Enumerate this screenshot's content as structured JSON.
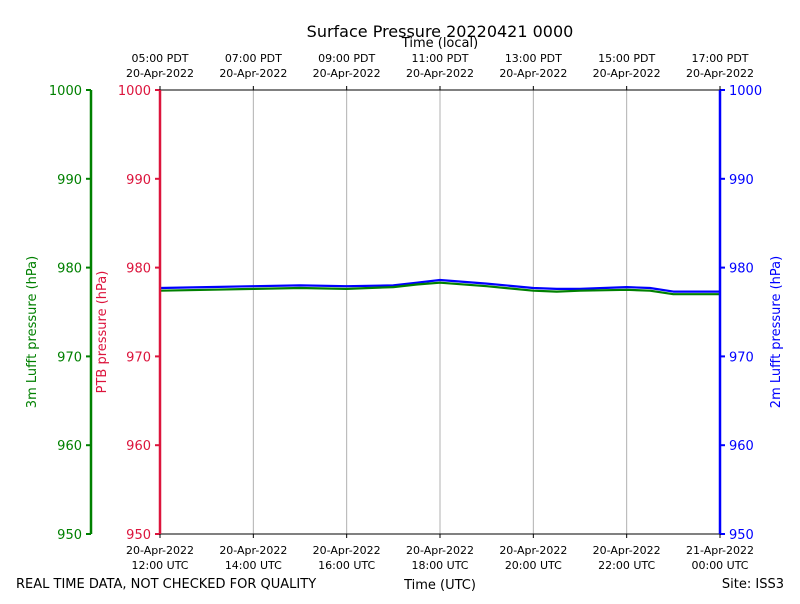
{
  "chart_data": {
    "type": "line",
    "title": "Surface Pressure 20220421 0000",
    "top_axis_label": "Time (local)",
    "xlabel": "Time (UTC)",
    "x_range_utc": [
      "2022-04-20 12:00",
      "2022-04-21 00:00"
    ],
    "x_ticks_utc": [
      {
        "line1": "20-Apr-2022",
        "line2": "12:00 UTC"
      },
      {
        "line1": "20-Apr-2022",
        "line2": "14:00 UTC"
      },
      {
        "line1": "20-Apr-2022",
        "line2": "16:00 UTC"
      },
      {
        "line1": "20-Apr-2022",
        "line2": "18:00 UTC"
      },
      {
        "line1": "20-Apr-2022",
        "line2": "20:00 UTC"
      },
      {
        "line1": "20-Apr-2022",
        "line2": "22:00 UTC"
      },
      {
        "line1": "21-Apr-2022",
        "line2": "00:00 UTC"
      }
    ],
    "x_ticks_local": [
      {
        "line1": "05:00 PDT",
        "line2": "20-Apr-2022"
      },
      {
        "line1": "07:00 PDT",
        "line2": "20-Apr-2022"
      },
      {
        "line1": "09:00 PDT",
        "line2": "20-Apr-2022"
      },
      {
        "line1": "11:00 PDT",
        "line2": "20-Apr-2022"
      },
      {
        "line1": "13:00 PDT",
        "line2": "20-Apr-2022"
      },
      {
        "line1": "15:00 PDT",
        "line2": "20-Apr-2022"
      },
      {
        "line1": "17:00 PDT",
        "line2": "20-Apr-2022"
      }
    ],
    "y_axes": [
      {
        "label": "3m Lufft pressure (hPa)",
        "color": "#008000",
        "ylim": [
          950,
          1000
        ],
        "ticks": [
          "950",
          "960",
          "970",
          "980",
          "990",
          "1000"
        ]
      },
      {
        "label": "PTB pressure (hPa)",
        "color": "#dc143c",
        "ylim": [
          950,
          1000
        ],
        "ticks": [
          "950",
          "960",
          "970",
          "980",
          "990",
          "1000"
        ]
      },
      {
        "label": "2m Lufft pressure (hPa)",
        "color": "#0000ff",
        "ylim": [
          950,
          1000
        ],
        "ticks": [
          "950",
          "960",
          "970",
          "980",
          "990",
          "1000"
        ]
      }
    ],
    "grid": "vertical",
    "series": [
      {
        "color": "#0000ff",
        "x_hours_utc": [
          12,
          13,
          14,
          15,
          16,
          17,
          17.5,
          18,
          19,
          20,
          20.5,
          21,
          22,
          22.5,
          23,
          23.5,
          24
        ],
        "values": [
          977.7,
          977.8,
          977.9,
          978.0,
          977.9,
          978.0,
          978.3,
          978.6,
          978.2,
          977.7,
          977.6,
          977.6,
          977.8,
          977.7,
          977.3,
          977.3,
          977.3
        ]
      },
      {
        "color": "#008000",
        "x_hours_utc": [
          12,
          13,
          14,
          15,
          16,
          17,
          17.5,
          18,
          19,
          20,
          20.5,
          21,
          22,
          22.5,
          23,
          23.5,
          24
        ],
        "values": [
          977.4,
          977.5,
          977.6,
          977.7,
          977.6,
          977.8,
          978.1,
          978.3,
          977.9,
          977.4,
          977.3,
          977.4,
          977.5,
          977.4,
          977.0,
          977.0,
          977.0
        ]
      }
    ]
  },
  "footer": {
    "left": "REAL TIME DATA, NOT CHECKED FOR QUALITY",
    "right": "Site: ISS3"
  }
}
